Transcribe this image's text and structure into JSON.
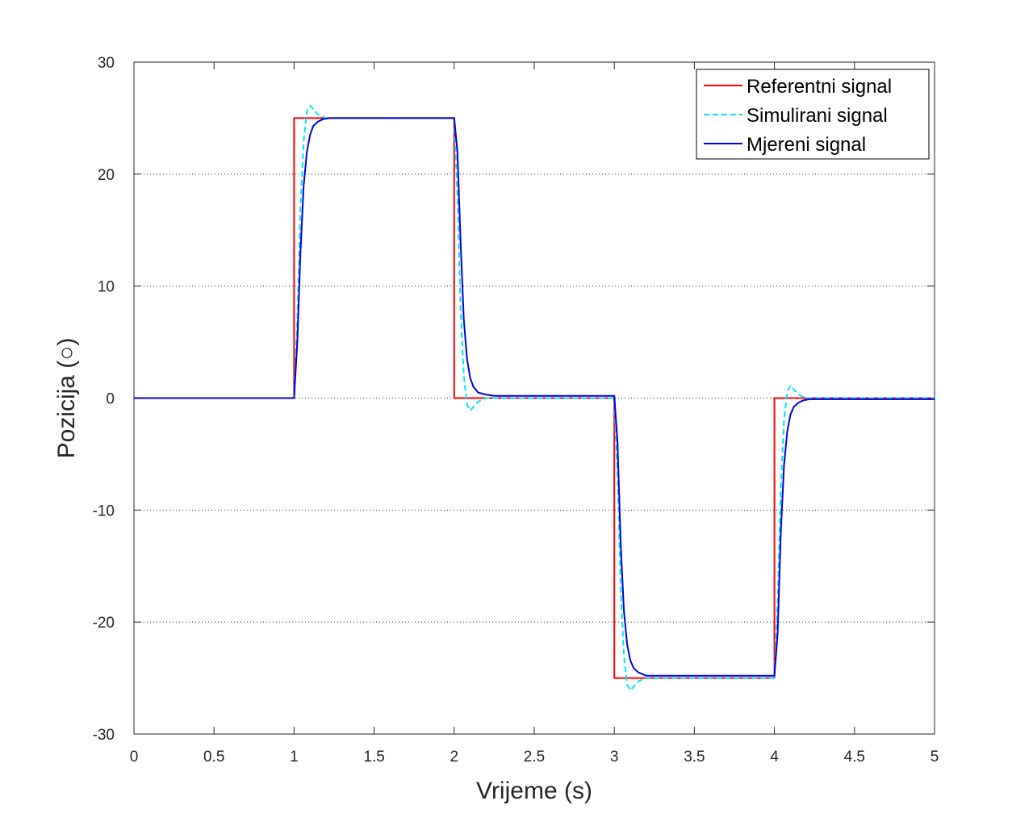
{
  "chart_data": {
    "type": "line",
    "title": "",
    "xlabel": "Vrijeme (s)",
    "ylabel": "Pozicija (○)",
    "xlim": [
      0,
      5
    ],
    "ylim": [
      -30,
      30
    ],
    "xticks": [
      0,
      0.5,
      1,
      1.5,
      2,
      2.5,
      3,
      3.5,
      4,
      4.5,
      5
    ],
    "yticks": [
      -30,
      -20,
      -10,
      0,
      10,
      20,
      30
    ],
    "xtick_labels": [
      "0",
      "0.5",
      "1",
      "1.5",
      "2",
      "2.5",
      "3",
      "3.5",
      "4",
      "4.5",
      "5"
    ],
    "ytick_labels": [
      "-30",
      "-20",
      "-10",
      "0",
      "10",
      "20",
      "30"
    ],
    "grid": true,
    "legend_position": "top-right",
    "series": [
      {
        "name": "Referentni signal",
        "color": "#ff0000",
        "style": "solid",
        "x": [
          0,
          1,
          1,
          2,
          2,
          3,
          3,
          4,
          4,
          5
        ],
        "y": [
          0,
          0,
          25,
          25,
          0,
          0,
          -25,
          -25,
          0,
          0
        ]
      },
      {
        "name": "Simulirani signal",
        "color": "#00e5ee",
        "style": "dashed",
        "x": [
          0,
          1,
          1.02,
          1.04,
          1.06,
          1.08,
          1.1,
          1.12,
          1.15,
          1.2,
          1.3,
          2,
          2.02,
          2.04,
          2.06,
          2.08,
          2.1,
          2.12,
          2.15,
          2.2,
          2.3,
          3,
          3.02,
          3.04,
          3.06,
          3.08,
          3.1,
          3.12,
          3.15,
          3.2,
          3.3,
          4,
          4.02,
          4.04,
          4.06,
          4.08,
          4.1,
          4.12,
          4.15,
          4.2,
          4.3,
          5
        ],
        "y": [
          0,
          0,
          7,
          17,
          23,
          25.6,
          26.1,
          25.8,
          25.3,
          25,
          25,
          25,
          18,
          8,
          2,
          -0.6,
          -1.1,
          -0.8,
          -0.3,
          0,
          0,
          0,
          -7,
          -17,
          -23,
          -25.6,
          -26.1,
          -25.8,
          -25.3,
          -25,
          -25,
          -25,
          -18,
          -8,
          -2,
          0.6,
          1.1,
          0.8,
          0.3,
          0,
          0,
          0
        ]
      },
      {
        "name": "Mjereni signal",
        "color": "#0000dd",
        "style": "solid",
        "x": [
          0,
          1,
          1.02,
          1.04,
          1.06,
          1.08,
          1.1,
          1.12,
          1.15,
          1.18,
          1.22,
          2,
          2.02,
          2.04,
          2.06,
          2.08,
          2.1,
          2.12,
          2.15,
          2.2,
          2.25,
          3,
          3.02,
          3.04,
          3.06,
          3.08,
          3.1,
          3.12,
          3.15,
          3.2,
          3.25,
          4,
          4.02,
          4.04,
          4.06,
          4.08,
          4.1,
          4.12,
          4.15,
          4.18,
          4.22,
          5
        ],
        "y": [
          0,
          0,
          5,
          13,
          19,
          22,
          23.5,
          24.3,
          24.7,
          24.9,
          25,
          25,
          22,
          14,
          7,
          3.5,
          1.8,
          1,
          0.5,
          0.3,
          0.2,
          0.2,
          -4,
          -13,
          -19,
          -22,
          -23.4,
          -24.1,
          -24.5,
          -24.8,
          -24.8,
          -24.8,
          -21,
          -12,
          -6,
          -3,
          -1.5,
          -0.8,
          -0.4,
          -0.2,
          -0.1,
          -0.1
        ]
      }
    ]
  }
}
